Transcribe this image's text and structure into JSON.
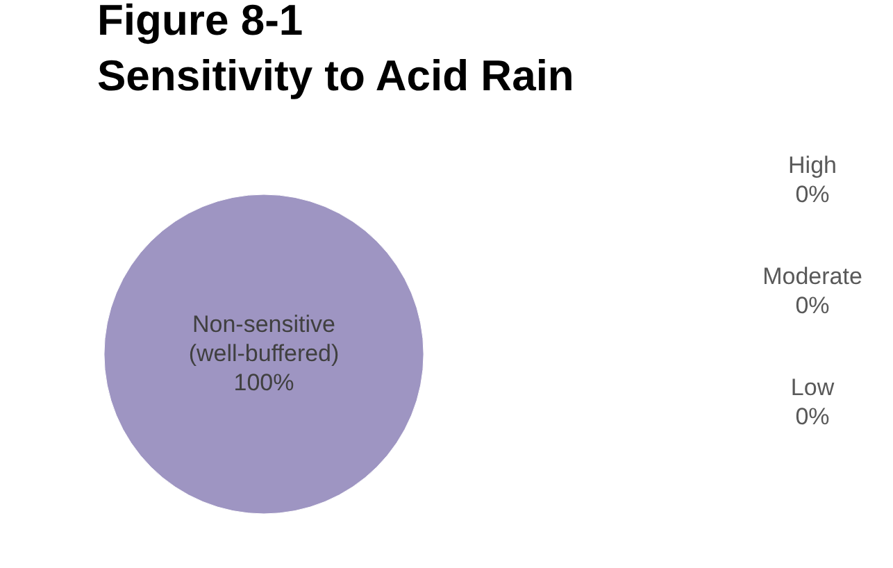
{
  "chart_data": {
    "type": "pie",
    "title": "Figure 8-1\nSensitivity to Acid Rain",
    "categories": [
      "High",
      "Moderate",
      "Low",
      "Non-sensitive (well-buffered)"
    ],
    "values": [
      0,
      0,
      0,
      100
    ],
    "colors": [
      "#4f81bd",
      "#c0504d",
      "#9bbb59",
      "#9e95c2"
    ],
    "value_labels": [
      "0%",
      "0%",
      "0%",
      "100%"
    ],
    "legend": false
  }
}
